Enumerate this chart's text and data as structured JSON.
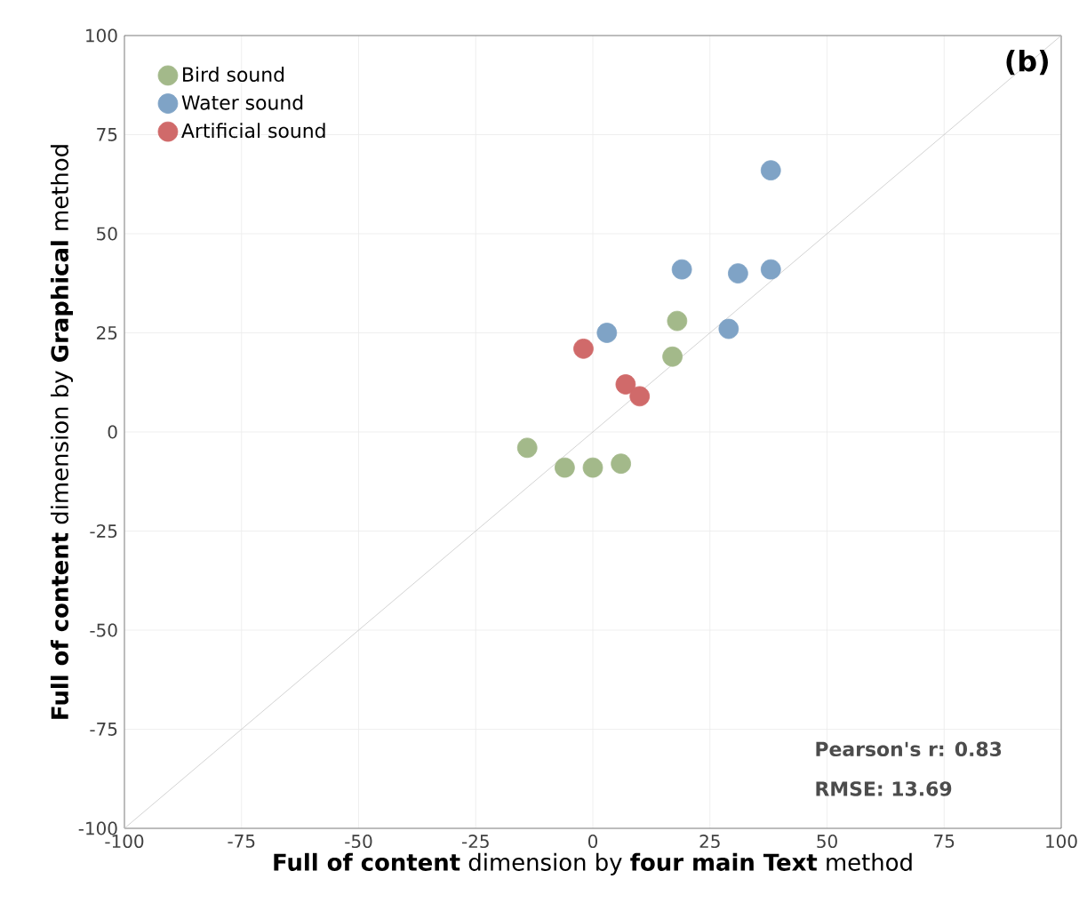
{
  "chart_data": {
    "type": "scatter",
    "xlabel": "**Full of content** dimension by **four main Text** method",
    "ylabel": "**Full of content** dimension by **Graphical** method",
    "xlim": [
      -100,
      100
    ],
    "ylim": [
      -100,
      100
    ],
    "xticks": [
      -100,
      -75,
      -50,
      -25,
      0,
      25,
      50,
      75,
      100
    ],
    "yticks": [
      -100,
      -75,
      -50,
      -25,
      0,
      25,
      50,
      75,
      100
    ],
    "grid": true,
    "legend": "top left",
    "marker": "circle",
    "annotations": [
      "(b)",
      "Pearson's r: 0.83",
      "RMSE: 13.69"
    ],
    "series": [
      {
        "name": "Bird sound",
        "color": "#a3b98a",
        "x": [
          -14,
          -6,
          0,
          6,
          17,
          18
        ],
        "values": [
          -4,
          -9,
          -9,
          -8,
          19,
          28
        ]
      },
      {
        "name": "Water sound",
        "color": "#7fa3c6",
        "x": [
          3,
          19,
          31,
          38,
          29,
          38
        ],
        "values": [
          25,
          41,
          40,
          41,
          26,
          66
        ]
      },
      {
        "name": "Artificial sound",
        "color": "#d06a6a",
        "x": [
          -2,
          7,
          10
        ],
        "values": [
          21,
          12,
          9
        ]
      },
      {
        "type": "line",
        "color": "#c8c8c8",
        "marker": "none",
        "x": [
          -100,
          100
        ],
        "values": [
          -100,
          100
        ]
      }
    ]
  }
}
